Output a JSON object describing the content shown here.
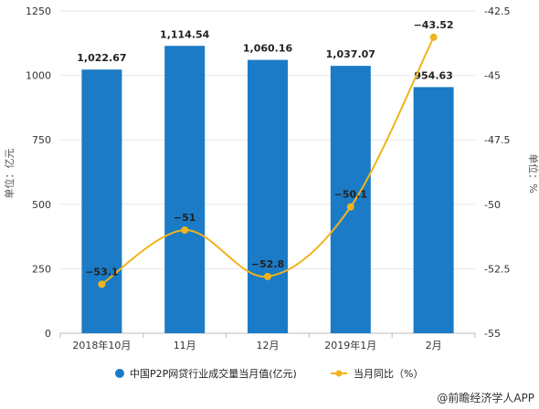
{
  "chart_data": {
    "type": "bar",
    "categories": [
      "2018年10月",
      "11月",
      "12月",
      "2019年1月",
      "2月"
    ],
    "series": [
      {
        "name": "中国P2P网贷行业成交量当月值(亿元)",
        "type": "bar",
        "axis": "left",
        "color": "#1B7BC6",
        "values": [
          1022.67,
          1114.54,
          1060.16,
          1037.07,
          954.63
        ],
        "labels": [
          "1,022.67",
          "1,114.54",
          "1,060.16",
          "1,037.07",
          "954.63"
        ]
      },
      {
        "name": "当月同比（%）",
        "type": "line",
        "axis": "right",
        "color": "#F0B41C",
        "values": [
          -53.1,
          -51,
          -52.8,
          -50.1,
          -43.52
        ],
        "labels": [
          "−53.1",
          "−51",
          "−52.8",
          "−50.1",
          "−43.52"
        ]
      }
    ],
    "ylabel": "单位：亿元",
    "y2label": "单位：%",
    "ylim": [
      0,
      1250
    ],
    "yticks": [
      "0",
      "250",
      "500",
      "750",
      "1000",
      "1250"
    ],
    "y2lim": [
      -55,
      -42.5
    ],
    "y2ticks": [
      "-42.5",
      "-45",
      "-47.5",
      "-50",
      "-52.5",
      "-55"
    ],
    "legend_position": "bottom",
    "grid": true
  },
  "footer": {
    "source": "@前瞻经济学人APP"
  }
}
